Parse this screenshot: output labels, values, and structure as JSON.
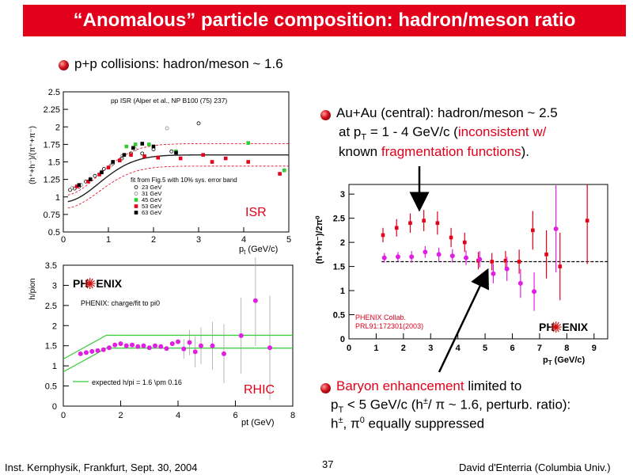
{
  "header": {
    "title": "“Anomalous” particle composition: hadron/meson ratio"
  },
  "bullets": {
    "pp": "p+p collisions: hadron/meson ~ 1.6",
    "auau": {
      "line1": "Au+Au (central): hadron/meson ~ 2.5",
      "line2_pre": "at p",
      "line2_sub": "T",
      "line2_mid": " = 1 - 4 GeV/c (",
      "line2_red": "inconsistent w/",
      "line3_pre": "known ",
      "line3_red": "fragmentation functions",
      "line3_post": ")."
    },
    "baryon": {
      "line1_red": "Baryon enhancement",
      "line1_post": " limited to",
      "line2_pre": "p",
      "line2_sub": "T",
      "line2_mid": " < 5 GeV/c (h",
      "line2_pm": "±",
      "line2_post": "/ π ~ 1.6, perturb. ratio):",
      "line3_h": "h",
      "line3_pm": "±",
      "line3_pi": ", π",
      "line3_zero": "0",
      "line3_post": "  equally suppressed"
    }
  },
  "footer": {
    "left": "Inst. Kernphysik, Frankfurt, Sept. 30, 2004",
    "page": "37",
    "right": "David d'Enterria (Columbia Univ.)"
  },
  "colors": {
    "title_bg": "#e2001a",
    "accent_red": "#e2001a",
    "magenta": "#e020e0",
    "green": "#33cc33",
    "phenix_red": "#d01010"
  },
  "chart_data": [
    {
      "id": "isr",
      "type": "scatter",
      "header_note": "pp ISR (Alper et al., NP B100 (75) 237)",
      "fit_note": "fit from Fig.5 with 10% sys. error band",
      "tag": "ISR",
      "xlabel": "p",
      "xlabel_sub": "t",
      "xlabel_unit": " (GeV/c)",
      "ylabel": "(h⁺+h⁻)/(π⁺+π⁻)",
      "xlim": [
        0,
        5
      ],
      "ylim": [
        0.5,
        2.5
      ],
      "xticks": [
        0,
        1,
        2,
        3,
        4,
        5
      ],
      "yticks": [
        0.5,
        0.75,
        1,
        1.25,
        1.5,
        1.75,
        2,
        2.25,
        2.5
      ],
      "series": [
        {
          "name": "23 GeV",
          "marker": "open-circle",
          "color": "#000000",
          "points": [
            [
              0.15,
              1.1
            ],
            [
              0.25,
              1.12
            ],
            [
              0.35,
              1.15
            ],
            [
              0.5,
              1.22
            ],
            [
              0.7,
              1.3
            ],
            [
              0.9,
              1.4
            ],
            [
              1.1,
              1.48
            ],
            [
              1.3,
              1.55
            ],
            [
              1.5,
              1.62
            ],
            [
              1.75,
              1.62
            ],
            [
              2.0,
              1.68
            ],
            [
              2.4,
              1.65
            ],
            [
              3.0,
              2.05
            ]
          ]
        },
        {
          "name": "31 GeV",
          "marker": "open-circle",
          "color": "#888888",
          "points": [
            [
              0.2,
              1.13
            ],
            [
              0.4,
              1.17
            ],
            [
              0.6,
              1.26
            ],
            [
              0.85,
              1.36
            ],
            [
              1.05,
              1.45
            ],
            [
              1.3,
              1.58
            ],
            [
              1.6,
              1.68
            ],
            [
              2.3,
              1.98
            ]
          ]
        },
        {
          "name": "45 GeV",
          "marker": "square",
          "color": "#33cc33",
          "points": [
            [
              1.4,
              1.72
            ],
            [
              1.6,
              1.75
            ],
            [
              1.9,
              1.75
            ],
            [
              2.5,
              1.65
            ],
            [
              4.1,
              1.77
            ],
            [
              4.9,
              1.38
            ]
          ]
        },
        {
          "name": "53 GeV",
          "marker": "square",
          "color": "#e2001a",
          "points": [
            [
              0.3,
              1.15
            ],
            [
              0.55,
              1.22
            ],
            [
              0.8,
              1.32
            ],
            [
              1.0,
              1.42
            ],
            [
              1.25,
              1.52
            ],
            [
              1.5,
              1.6
            ],
            [
              1.8,
              1.58
            ],
            [
              2.1,
              1.56
            ],
            [
              2.6,
              1.55
            ],
            [
              3.1,
              1.6
            ],
            [
              3.3,
              1.5
            ],
            [
              3.6,
              1.55
            ],
            [
              4.1,
              1.5
            ],
            [
              4.8,
              1.33
            ]
          ]
        },
        {
          "name": "63 GeV",
          "marker": "square",
          "color": "#000000",
          "points": [
            [
              0.35,
              1.17
            ],
            [
              0.6,
              1.25
            ],
            [
              0.85,
              1.35
            ],
            [
              1.1,
              1.5
            ],
            [
              1.35,
              1.6
            ],
            [
              1.55,
              1.7
            ],
            [
              1.75,
              1.76
            ],
            [
              2.0,
              1.72
            ],
            [
              2.5,
              1.63
            ]
          ]
        }
      ],
      "fit": {
        "plateau": 1.6,
        "band": 0.16
      }
    },
    {
      "id": "rhic",
      "type": "scatter",
      "note": "PHENIX: charge/fit to pi0",
      "fit_note": "expected h/pi = 1.6 \\pm 0.16",
      "tag": "RHIC",
      "logo_left": "PH",
      "logo_right": "ENIX",
      "xlabel": "pt (GeV)",
      "ylabel": "h/pion",
      "xlim": [
        0,
        8
      ],
      "ylim": [
        0,
        3.5
      ],
      "xticks": [
        0,
        2,
        4,
        6,
        8
      ],
      "yticks": [
        0,
        0.5,
        1,
        1.5,
        2,
        2.5,
        3,
        3.5
      ],
      "series": [
        {
          "name": "PHENIX",
          "marker": "circle",
          "color": "#e020e0",
          "points": [
            [
              0.6,
              1.3
            ],
            [
              0.8,
              1.33
            ],
            [
              1.0,
              1.36
            ],
            [
              1.2,
              1.38
            ],
            [
              1.4,
              1.4
            ],
            [
              1.6,
              1.45
            ],
            [
              1.8,
              1.52
            ],
            [
              2.0,
              1.55
            ],
            [
              2.2,
              1.5
            ],
            [
              2.4,
              1.52
            ],
            [
              2.6,
              1.48
            ],
            [
              2.8,
              1.5
            ],
            [
              3.0,
              1.45
            ],
            [
              3.2,
              1.5
            ],
            [
              3.4,
              1.48
            ],
            [
              3.6,
              1.43
            ],
            [
              3.8,
              1.55
            ],
            [
              4.0,
              1.6
            ],
            [
              4.2,
              1.42
            ],
            [
              4.4,
              1.58
            ],
            [
              4.6,
              1.35
            ],
            [
              4.8,
              1.5
            ],
            [
              5.2,
              1.5
            ],
            [
              5.6,
              1.3
            ],
            [
              6.2,
              1.75
            ],
            [
              6.7,
              2.62
            ],
            [
              7.2,
              1.45
            ]
          ]
        }
      ],
      "fit": {
        "plateau": 1.6,
        "band": 0.16
      }
    },
    {
      "id": "auau",
      "type": "scatter",
      "ylabel": "(h⁺+h⁻)/2π⁰",
      "xlabel": "p",
      "xlabel_sub": "T",
      "xlabel_unit": "  (GeV/c)",
      "collab": "PHENIX Collab.",
      "ref": "PRL91:172301(2003)",
      "logo_left": "PH",
      "logo_right": "ENIX",
      "xlim": [
        0,
        9.5
      ],
      "ylim": [
        0,
        3.2
      ],
      "xticks": [
        0,
        1,
        2,
        3,
        4,
        5,
        6,
        7,
        8,
        9
      ],
      "yticks": [
        0,
        0.5,
        1,
        1.5,
        2,
        2.5,
        3
      ],
      "reference_line": 1.6,
      "series": [
        {
          "name": "central",
          "marker": "square",
          "color": "#e2001a",
          "points": [
            [
              1.25,
              2.15
            ],
            [
              1.75,
              2.3
            ],
            [
              2.25,
              2.4
            ],
            [
              2.75,
              2.45
            ],
            [
              3.25,
              2.4
            ],
            [
              3.75,
              2.1
            ],
            [
              4.25,
              2.0
            ],
            [
              4.75,
              1.62
            ],
            [
              5.25,
              1.6
            ],
            [
              5.75,
              1.62
            ],
            [
              6.25,
              1.6
            ],
            [
              6.75,
              2.25
            ],
            [
              7.25,
              1.75
            ],
            [
              7.75,
              1.5
            ],
            [
              8.75,
              2.45
            ]
          ],
          "err": [
            0.15,
            0.18,
            0.2,
            0.22,
            0.24,
            0.2,
            0.2,
            0.18,
            0.18,
            0.2,
            0.25,
            0.4,
            0.5,
            0.7,
            0.9
          ]
        },
        {
          "name": "peripheral",
          "marker": "circle",
          "color": "#e020e0",
          "points": [
            [
              1.3,
              1.68
            ],
            [
              1.8,
              1.7
            ],
            [
              2.3,
              1.7
            ],
            [
              2.8,
              1.8
            ],
            [
              3.3,
              1.75
            ],
            [
              3.8,
              1.72
            ],
            [
              4.3,
              1.68
            ],
            [
              4.8,
              1.65
            ],
            [
              5.3,
              1.35
            ],
            [
              5.8,
              1.45
            ],
            [
              6.3,
              1.15
            ],
            [
              6.8,
              0.98
            ],
            [
              7.6,
              2.28
            ]
          ],
          "err": [
            0.1,
            0.1,
            0.12,
            0.12,
            0.14,
            0.14,
            0.15,
            0.17,
            0.2,
            0.25,
            0.3,
            0.4,
            0.9
          ]
        }
      ]
    }
  ]
}
